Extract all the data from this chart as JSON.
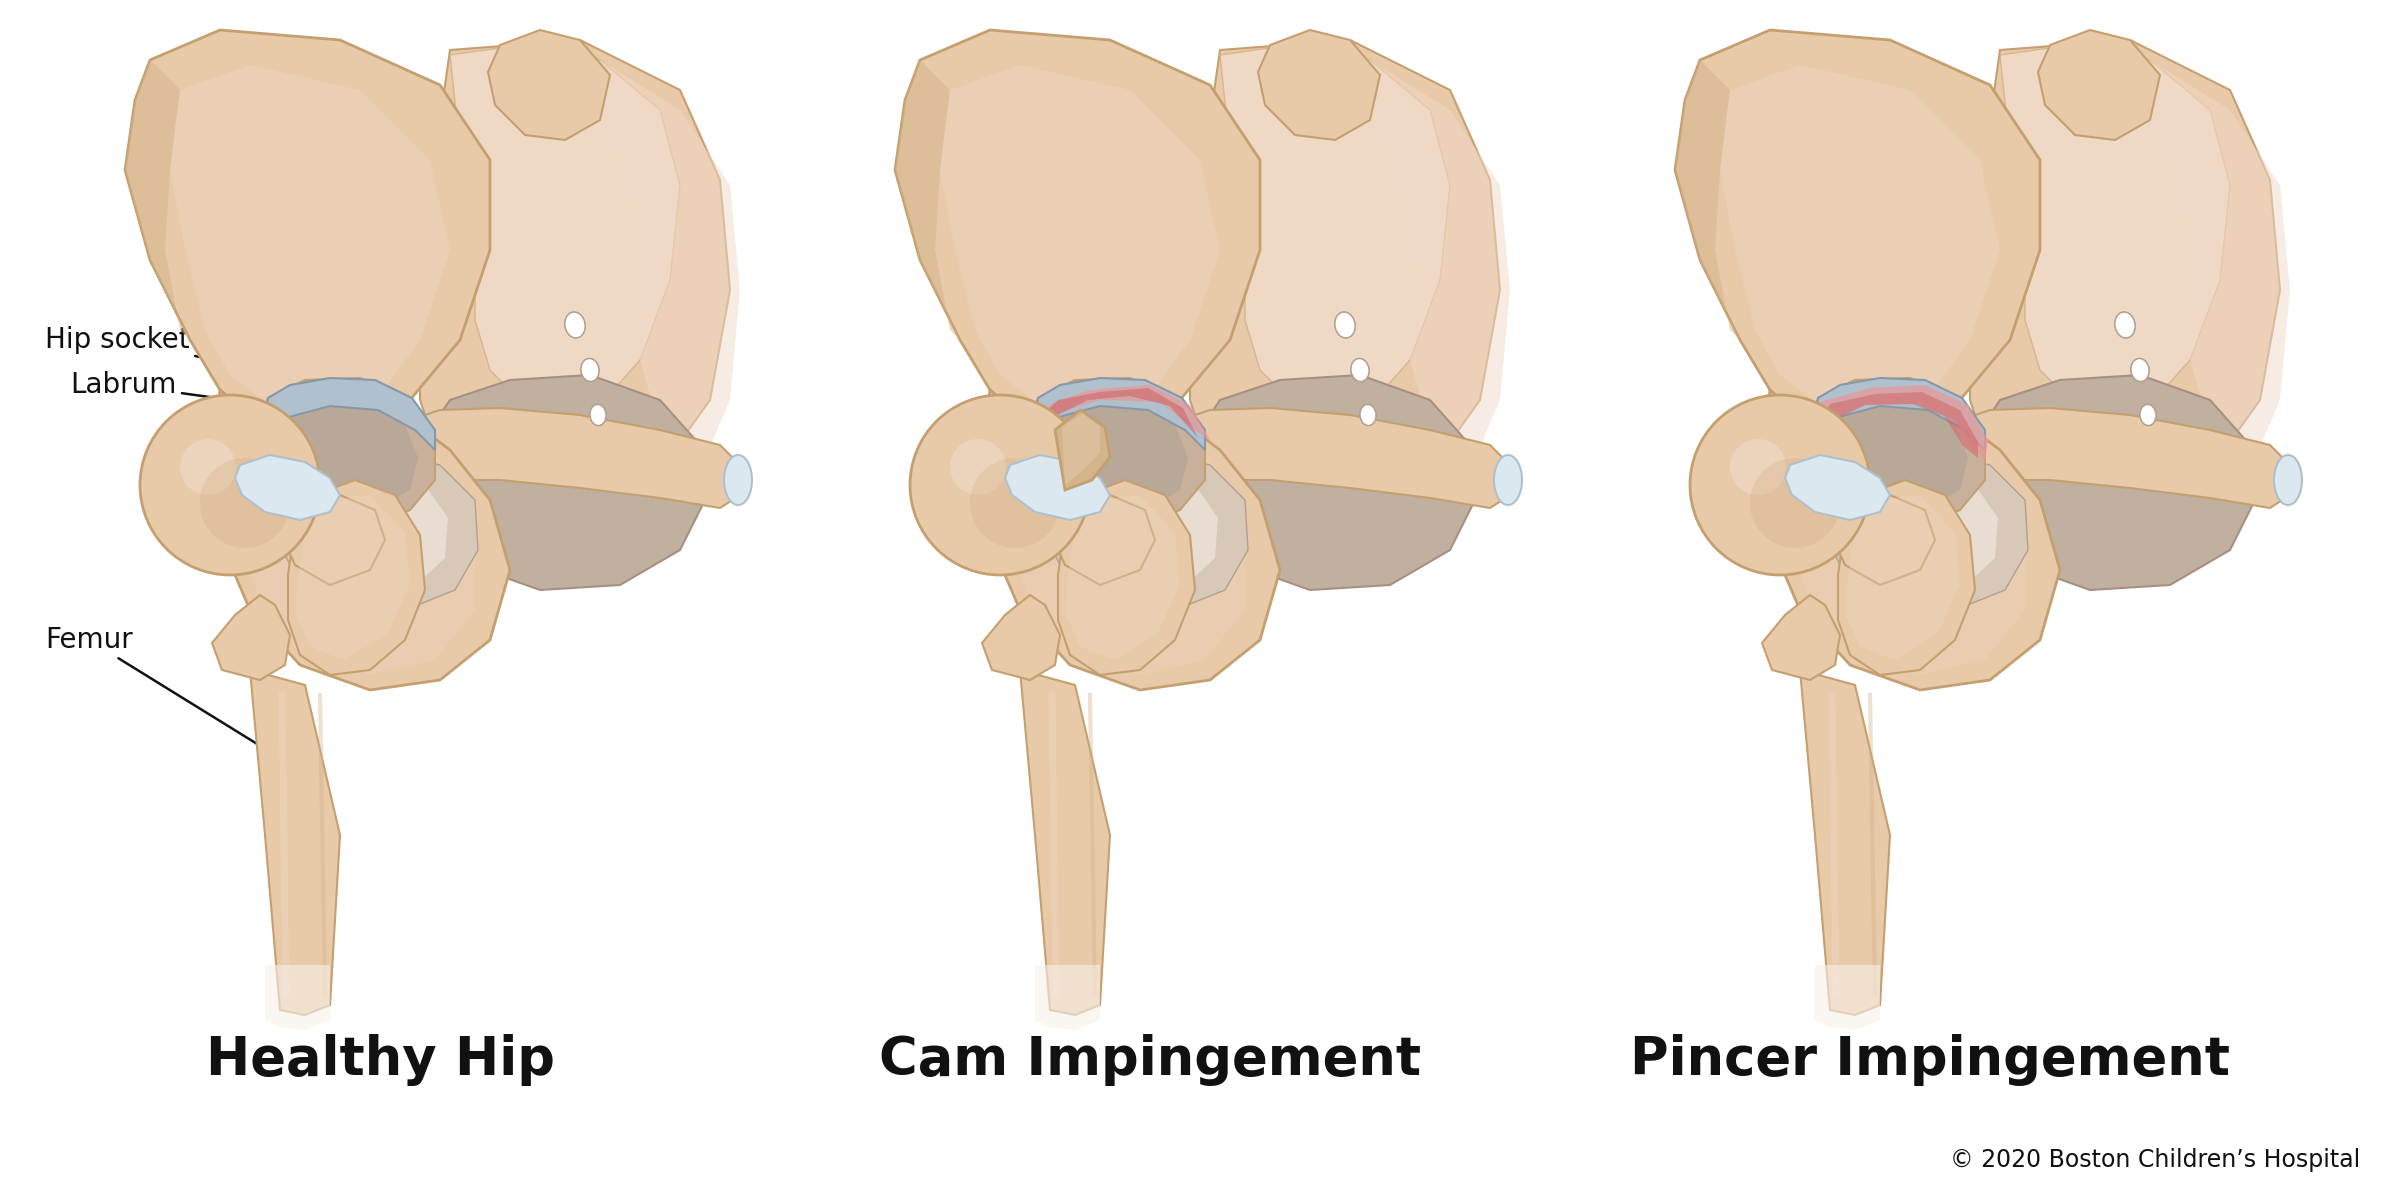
{
  "background_color": "#ffffff",
  "title_healthy": "Healthy Hip",
  "title_cam": "Cam Impingement",
  "title_pincer": "Pincer Impingement",
  "title_fontsize": 38,
  "label_hip_socket": "Hip socket",
  "label_labrum": "Labrum",
  "label_femur": "Femur",
  "label_fontsize": 20,
  "copyright": "© 2020 Boston Children’s Hospital",
  "copyright_fontsize": 17,
  "bone_light": "#f0dac8",
  "bone_color": "#e8c9a8",
  "bone_mid": "#d4b48a",
  "bone_dark": "#c4a070",
  "bone_shadow": "#b08858",
  "bone_inner": "#c8b09a",
  "cartilage_color": "#b0c0cc",
  "cartilage_dark": "#8898a8",
  "inflamed_color": "#d06868",
  "inflamed_light": "#e89898",
  "white_band": "#dce8f0",
  "obturator_bg": "#c0b0a0",
  "obturator_dark": "#a89080",
  "text_color": "#111111"
}
